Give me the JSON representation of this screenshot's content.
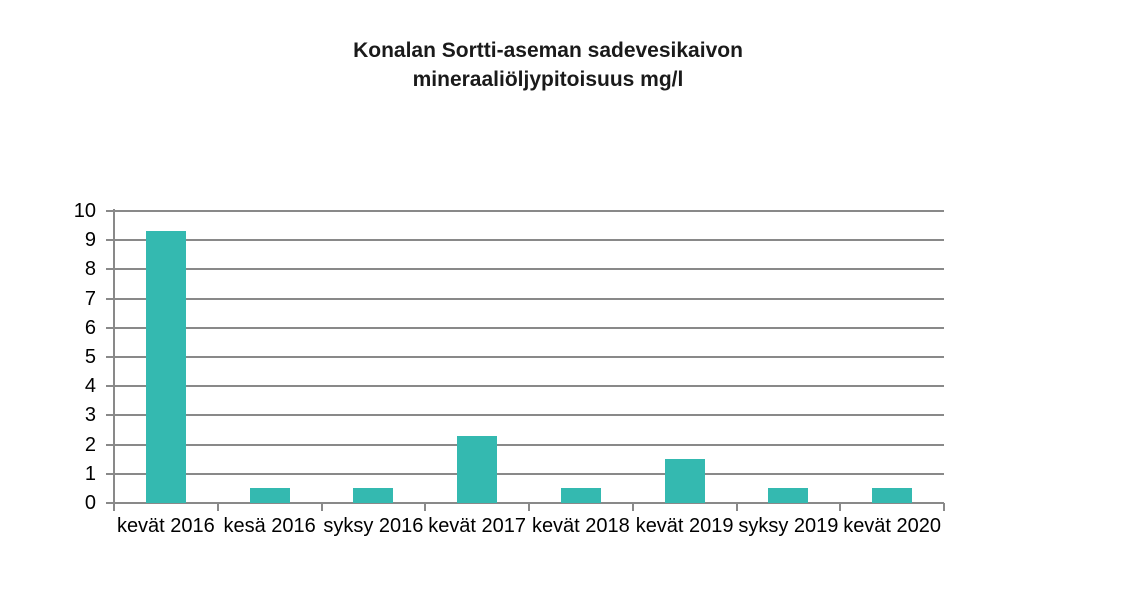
{
  "chart_data": {
    "type": "bar",
    "title": "Konalan Sortti-aseman sadevesikaivon mineraaliöljypitoisuus mg/l",
    "title_lines": [
      "Konalan Sortti-aseman sadevesikaivon",
      "mineraaliöljypitoisuus mg/l"
    ],
    "categories": [
      "kevät 2016",
      "kesä 2016",
      "syksy 2016",
      "kevät 2017",
      "kevät 2018",
      "kevät 2019",
      "syksy 2019",
      "kevät 2020"
    ],
    "values": [
      9.3,
      0.5,
      0.5,
      2.3,
      0.5,
      1.5,
      0.5,
      0.5
    ],
    "unit": "mg/l",
    "xlabel": "",
    "ylabel": "",
    "ylim": [
      0,
      10
    ],
    "ytick_step": 1,
    "grid": true,
    "legend_position": "none",
    "colors": {
      "bar": "#34b9b0",
      "axis": "#898989",
      "title_text": "#1a1a1a",
      "tick_text": "#000000",
      "background": "#ffffff"
    }
  }
}
